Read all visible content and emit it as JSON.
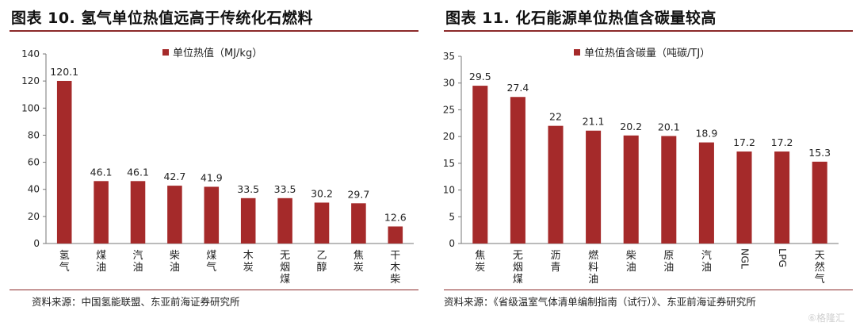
{
  "watermark": "⑥格隆汇",
  "chart_data": [
    {
      "type": "bar",
      "title": "图表 10. 氢气单位热值远高于传统化石燃料",
      "legend": "单位热值（MJ/kg）",
      "source": "资料来源：中国氢能联盟、东亚前海证券研究所",
      "categories": [
        "氢气",
        "煤油",
        "汽油",
        "柴油",
        "煤气",
        "木炭",
        "无烟煤",
        "乙醇",
        "焦炭",
        "干木柴"
      ],
      "values": [
        120.1,
        46.1,
        46.1,
        42.7,
        41.9,
        33.5,
        33.5,
        30.2,
        29.7,
        12.6
      ],
      "value_labels": [
        "120.1",
        "46.1",
        "46.1",
        "42.7",
        "41.9",
        "33.5",
        "33.5",
        "30.2",
        "29.7",
        "12.6"
      ],
      "ylim": [
        0,
        140
      ],
      "yticks": [
        "0",
        "20",
        "40",
        "60",
        "80",
        "100",
        "120",
        "140"
      ],
      "grid": false,
      "legend_position": "top",
      "bar_color": "#a52a2a"
    },
    {
      "type": "bar",
      "title": "图表 11. 化石能源单位热值含碳量较高",
      "legend": "单位热值含碳量（吨碳/TJ）",
      "source": "资料来源：《省级温室气体清单编制指南（试行）》、东亚前海证券研究所",
      "categories": [
        "焦炭",
        "无烟煤",
        "沥青",
        "燃料油",
        "柴油",
        "原油",
        "汽油",
        "NGL",
        "LPG",
        "天然气"
      ],
      "values": [
        29.5,
        27.4,
        22,
        21.1,
        20.2,
        20.1,
        18.9,
        17.2,
        17.2,
        15.3
      ],
      "value_labels": [
        "29.5",
        "27.4",
        "22",
        "21.1",
        "20.2",
        "20.1",
        "18.9",
        "17.2",
        "17.2",
        "15.3"
      ],
      "ylim": [
        0,
        35
      ],
      "yticks": [
        "0",
        "5",
        "10",
        "15",
        "20",
        "25",
        "30",
        "35"
      ],
      "grid": false,
      "legend_position": "top",
      "bar_color": "#a52a2a"
    }
  ]
}
